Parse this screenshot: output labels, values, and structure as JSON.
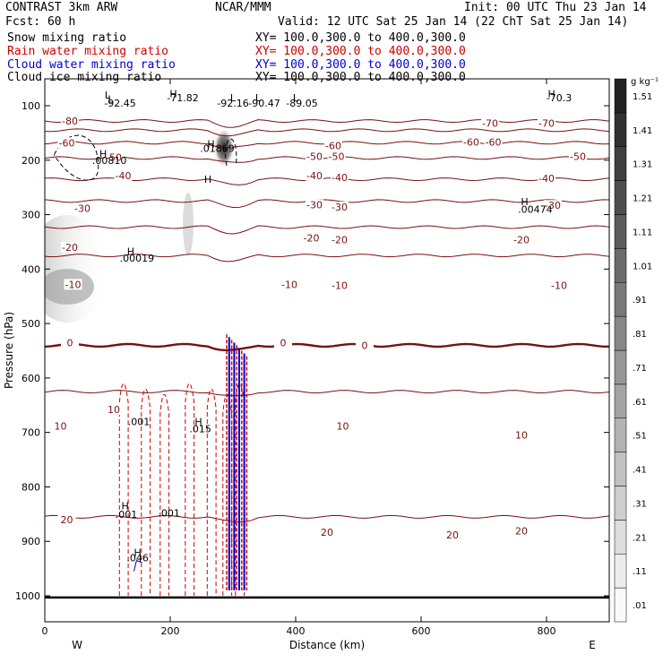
{
  "header": {
    "model": "CONTRAST   3km ARW",
    "org": "NCAR/MMM",
    "init": "Init: 00 UTC Thu 23 Jan 14",
    "fcst": "Fcst:    60 h",
    "valid": "Valid: 12 UTC Sat 25 Jan 14 (22 ChT Sat 25 Jan 14)"
  },
  "legend": [
    {
      "label": "Snow mixing ratio",
      "xy": "XY= 100.0,300.0 to 400.0,300.0",
      "color": "#000000"
    },
    {
      "label": "Rain water mixing ratio",
      "xy": "XY= 100.0,300.0 to 400.0,300.0",
      "color": "#d00000"
    },
    {
      "label": "Cloud water mixing ratio",
      "xy": "XY= 100.0,300.0 to 400.0,300.0",
      "color": "#0000d0"
    },
    {
      "label": "Cloud ice mixing ratio",
      "xy": "XY= 100.0,300.0 to 400.0,300.0",
      "color": "#000000"
    }
  ],
  "chart_data": {
    "type": "contour",
    "xlabel": "Distance (km)",
    "ylabel": "Pressure (hPa)",
    "xlim": [
      0,
      900
    ],
    "ylim": [
      1000,
      50
    ],
    "x_ticks": [
      0,
      200,
      400,
      600,
      800
    ],
    "y_ticks": [
      100,
      200,
      300,
      400,
      500,
      600,
      700,
      800,
      900,
      1000
    ],
    "x_ends": {
      "left": "W",
      "right": "E"
    },
    "colorbar": {
      "unit": "g kg⁻¹",
      "levels": [
        ".01",
        ".11",
        ".21",
        ".31",
        ".41",
        ".51",
        ".61",
        ".71",
        ".81",
        ".91",
        "1.01",
        "1.11",
        "1.21",
        "1.31",
        "1.41",
        "1.51"
      ]
    },
    "temperature_isotherms_C": [
      {
        "value": -80,
        "p": 128
      },
      {
        "value": -70,
        "p": 145
      },
      {
        "value": -60,
        "p": 168
      },
      {
        "value": -50,
        "p": 196
      },
      {
        "value": -40,
        "p": 235
      },
      {
        "value": -30,
        "p": 275
      },
      {
        "value": -20,
        "p": 323
      },
      {
        "value": -10,
        "p": 375
      },
      {
        "value": 0,
        "p": 540
      },
      {
        "value": 10,
        "p": 625
      },
      {
        "value": 20,
        "p": 855
      }
    ],
    "temperature_labels": [
      {
        "text": "-80",
        "x": 40,
        "p": 128
      },
      {
        "text": "-60",
        "x": 35,
        "p": 168
      },
      {
        "text": "-50",
        "x": 110,
        "p": 195
      },
      {
        "text": "-40",
        "x": 125,
        "p": 228
      },
      {
        "text": "-30",
        "x": 60,
        "p": 288
      },
      {
        "text": "-20",
        "x": 40,
        "p": 360
      },
      {
        "text": "-10",
        "x": 45,
        "p": 428
      },
      {
        "text": "0",
        "x": 40,
        "p": 535
      },
      {
        "text": "10",
        "x": 110,
        "p": 658
      },
      {
        "text": "10",
        "x": 25,
        "p": 688
      },
      {
        "text": "20",
        "x": 35,
        "p": 860
      },
      {
        "text": "-60",
        "x": 460,
        "p": 173
      },
      {
        "text": "-50",
        "x": 430,
        "p": 193
      },
      {
        "text": "-50",
        "x": 465,
        "p": 193
      },
      {
        "text": "-40",
        "x": 430,
        "p": 228
      },
      {
        "text": "-40",
        "x": 470,
        "p": 232
      },
      {
        "text": "-30",
        "x": 430,
        "p": 282
      },
      {
        "text": "-30",
        "x": 470,
        "p": 286
      },
      {
        "text": "-20",
        "x": 425,
        "p": 343
      },
      {
        "text": "-20",
        "x": 470,
        "p": 346
      },
      {
        "text": "-10",
        "x": 390,
        "p": 428
      },
      {
        "text": "-10",
        "x": 470,
        "p": 430
      },
      {
        "text": "0",
        "x": 380,
        "p": 535
      },
      {
        "text": "0",
        "x": 510,
        "p": 540
      },
      {
        "text": "10",
        "x": 475,
        "p": 688
      },
      {
        "text": "20",
        "x": 450,
        "p": 883
      },
      {
        "text": "20",
        "x": 650,
        "p": 888
      },
      {
        "text": "-70",
        "x": 710,
        "p": 132
      },
      {
        "text": "-70",
        "x": 800,
        "p": 132
      },
      {
        "text": "-60",
        "x": 680,
        "p": 167
      },
      {
        "text": "-60",
        "x": 715,
        "p": 167
      },
      {
        "text": "-50",
        "x": 850,
        "p": 193
      },
      {
        "text": "-40",
        "x": 800,
        "p": 233
      },
      {
        "text": "-30",
        "x": 810,
        "p": 283
      },
      {
        "text": "-20",
        "x": 760,
        "p": 346
      },
      {
        "text": "-10",
        "x": 820,
        "p": 430
      },
      {
        "text": "10",
        "x": 760,
        "p": 705
      },
      {
        "text": "20",
        "x": 760,
        "p": 881
      }
    ],
    "extrema": [
      {
        "text": "L",
        "x": 100,
        "p": 80
      },
      {
        "text": "L",
        "x": 105,
        "p": 88
      },
      {
        "text": "-92.45",
        "x": 120,
        "p": 95
      },
      {
        "text": "H",
        "x": 205,
        "p": 78
      },
      {
        "text": "-71.82",
        "x": 220,
        "p": 85
      },
      {
        "text": "L",
        "x": 300,
        "p": 85
      },
      {
        "text": "-92.16",
        "x": 300,
        "p": 95
      },
      {
        "text": "L",
        "x": 340,
        "p": 85
      },
      {
        "text": "-90.47",
        "x": 350,
        "p": 95
      },
      {
        "text": "L",
        "x": 400,
        "p": 85
      },
      {
        "text": "-89.05",
        "x": 410,
        "p": 95
      },
      {
        "text": "H",
        "x": 808,
        "p": 78
      },
      {
        "text": "-70.3",
        "x": 820,
        "p": 85
      },
      {
        "text": "H",
        "x": 93,
        "p": 188
      },
      {
        "text": ".00810",
        "x": 103,
        "p": 200
      },
      {
        "text": "H",
        "x": 265,
        "p": 170
      },
      {
        "text": ".01869",
        "x": 275,
        "p": 178
      },
      {
        "text": "H",
        "x": 765,
        "p": 276
      },
      {
        "text": ".00474",
        "x": 782,
        "p": 290
      },
      {
        "text": "H",
        "x": 137,
        "p": 367
      },
      {
        "text": ".00019",
        "x": 147,
        "p": 380
      },
      {
        "text": "H",
        "x": 260,
        "p": 235
      },
      {
        "text": "H",
        "x": 245,
        "p": 680
      },
      {
        "text": ".015",
        "x": 248,
        "p": 693
      },
      {
        "text": "H",
        "x": 128,
        "p": 835
      },
      {
        "text": ".001",
        "x": 130,
        "p": 850
      },
      {
        "text": ".001",
        "x": 198,
        "p": 848
      },
      {
        "text": ".001",
        "x": 150,
        "p": 680
      },
      {
        "text": "H",
        "x": 148,
        "p": 920
      },
      {
        "text": ".046",
        "x": 148,
        "p": 930
      }
    ]
  }
}
